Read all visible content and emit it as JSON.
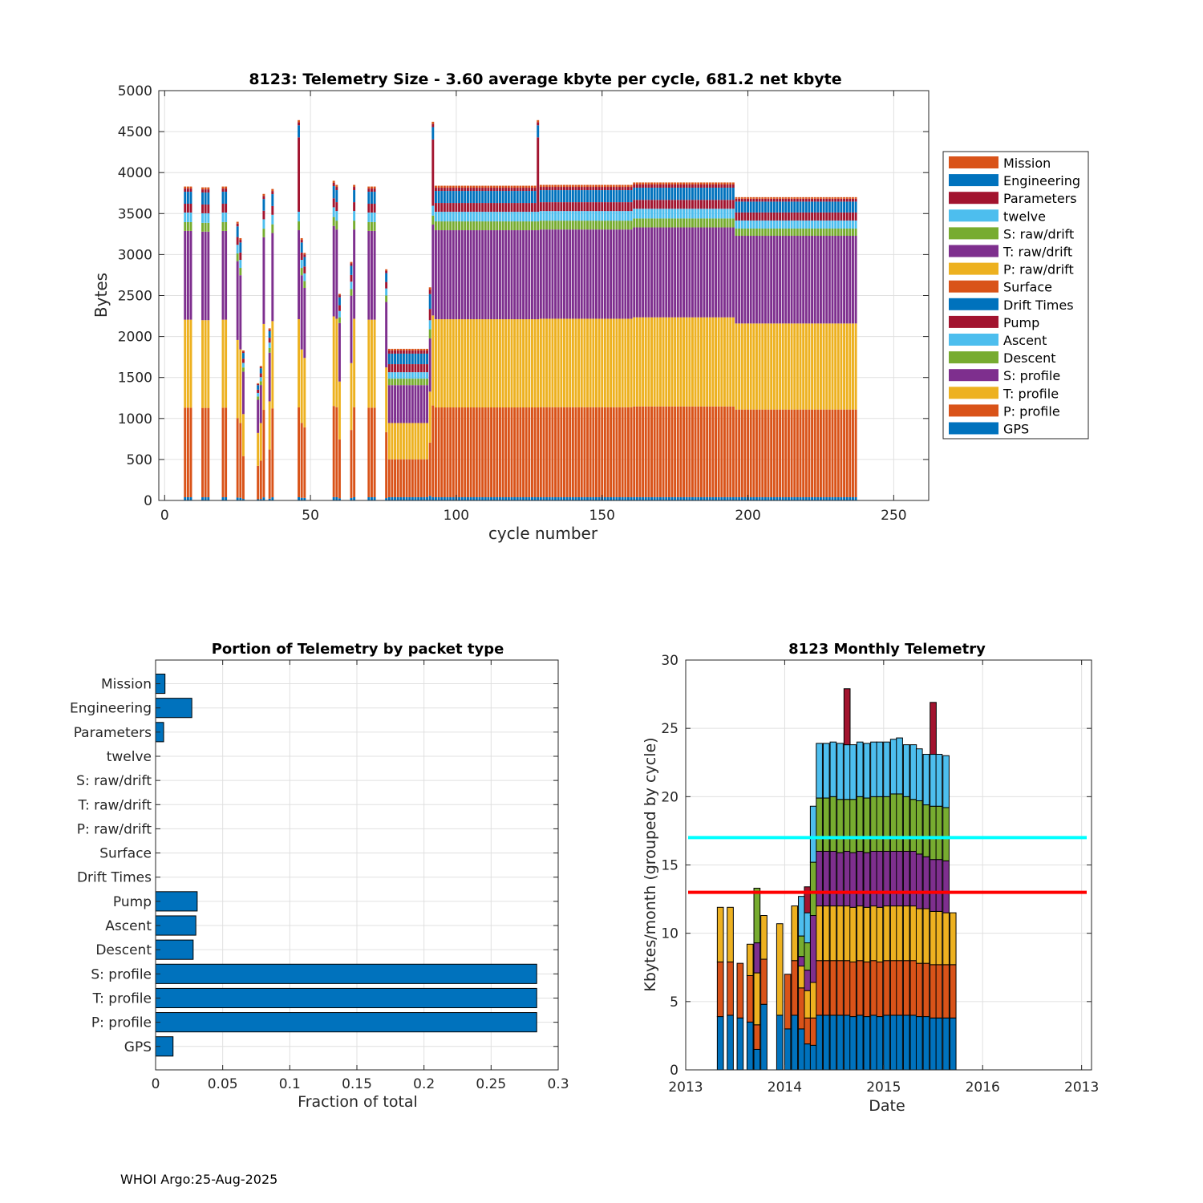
{
  "footer": "WHOI Argo:25-Aug-2025",
  "palette": {
    "Mission": "#D95319",
    "Engineering": "#0072BD",
    "Parameters": "#A2142F",
    "twelve": "#4DBEEE",
    "S: raw/drift": "#77AC30",
    "T: raw/drift": "#7E2F8E",
    "P: raw/drift": "#EDB120",
    "Surface": "#D95319",
    "Drift Times": "#0072BD",
    "Pump": "#A2142F",
    "Ascent": "#4DBEEE",
    "Descent": "#77AC30",
    "S: profile": "#7E2F8E",
    "T: profile": "#EDB120",
    "P: profile": "#D95319",
    "GPS": "#0072BD"
  },
  "chart_data": [
    {
      "id": "cycle-telemetry",
      "type": "bar",
      "stacked": true,
      "title": "8123: Telemetry Size - 3.60 average kbyte per cycle,  681.2 net kbyte",
      "xlabel": "cycle number",
      "ylabel": "Bytes",
      "xlim": [
        -2,
        262
      ],
      "ylim": [
        0,
        5000
      ],
      "xticks": [
        0,
        50,
        100,
        150,
        200,
        250
      ],
      "yticks": [
        0,
        500,
        1000,
        1500,
        2000,
        2500,
        3000,
        3500,
        4000,
        4500,
        5000
      ],
      "legend_position": "outside-right",
      "legend": [
        "Mission",
        "Engineering",
        "Parameters",
        "twelve",
        "S: raw/drift",
        "T: raw/drift",
        "P: raw/drift",
        "Surface",
        "Drift Times",
        "Pump",
        "Ascent",
        "Descent",
        "S: profile",
        "T: profile",
        "P: profile",
        "GPS"
      ],
      "stack_order": [
        "GPS",
        "P: profile",
        "T: profile",
        "S: profile",
        "Descent",
        "Ascent",
        "Pump",
        "Engineering",
        "Parameters",
        "Mission"
      ],
      "templates": {
        "full": {
          "GPS": 40,
          "P: profile": 1120,
          "T: profile": 1100,
          "S: profile": 1110,
          "Descent": 110,
          "Ascent": 120,
          "Pump": 110,
          "Engineering": 150,
          "Parameters": 40,
          "Mission": 25
        },
        "mid": {
          "GPS": 40,
          "P: profile": 470,
          "T: profile": 450,
          "S: profile": 470,
          "Descent": 80,
          "Ascent": 80,
          "Pump": 100,
          "Engineering": 130,
          "Parameters": 40,
          "Mission": 20
        },
        "late": {
          "GPS": 40,
          "P: profile": 1090,
          "T: profile": 1070,
          "S: profile": 1090,
          "Descent": 90,
          "Ascent": 100,
          "Pump": 100,
          "Engineering": 135,
          "Parameters": 35,
          "Mission": 20
        }
      },
      "segments": [
        {
          "from": 7,
          "to": 9,
          "total": 3830,
          "tpl": "full"
        },
        {
          "from": 13,
          "to": 15,
          "total": 3820,
          "tpl": "full"
        },
        {
          "from": 20,
          "to": 21,
          "total": 3830,
          "tpl": "full"
        },
        {
          "from": 25,
          "to": 25,
          "total": 3400,
          "tpl": "full"
        },
        {
          "from": 26,
          "to": 26,
          "total": 3200,
          "tpl": "full"
        },
        {
          "from": 27,
          "to": 27,
          "total": 1830,
          "tpl": "full"
        },
        {
          "from": 32,
          "to": 32,
          "total": 1430,
          "tpl": "full"
        },
        {
          "from": 33,
          "to": 33,
          "total": 1640,
          "tpl": "full"
        },
        {
          "from": 34,
          "to": 34,
          "total": 3740,
          "tpl": "full"
        },
        {
          "from": 36,
          "to": 36,
          "total": 2100,
          "tpl": "full"
        },
        {
          "from": 37,
          "to": 37,
          "total": 3800,
          "tpl": "full"
        },
        {
          "from": 46,
          "to": 46,
          "total": 4640,
          "tpl": "full",
          "pumpExtra": 800
        },
        {
          "from": 47,
          "to": 47,
          "total": 3200,
          "tpl": "full"
        },
        {
          "from": 48,
          "to": 48,
          "total": 3020,
          "tpl": "full"
        },
        {
          "from": 58,
          "to": 58,
          "total": 3900,
          "tpl": "full"
        },
        {
          "from": 59,
          "to": 59,
          "total": 3850,
          "tpl": "full"
        },
        {
          "from": 60,
          "to": 60,
          "total": 2520,
          "tpl": "full"
        },
        {
          "from": 64,
          "to": 64,
          "total": 2910,
          "tpl": "full"
        },
        {
          "from": 65,
          "to": 65,
          "total": 3850,
          "tpl": "full"
        },
        {
          "from": 70,
          "to": 72,
          "total": 3830,
          "tpl": "full"
        },
        {
          "from": 76,
          "to": 76,
          "total": 2820,
          "tpl": "full"
        },
        {
          "from": 77,
          "to": 90,
          "total": 1850,
          "tpl": "mid"
        },
        {
          "from": 91,
          "to": 91,
          "total": 2600,
          "tpl": "mid"
        },
        {
          "from": 92,
          "to": 92,
          "total": 4620,
          "tpl": "full",
          "pumpExtra": 700
        },
        {
          "from": 93,
          "to": 127,
          "total": 3840,
          "tpl": "full"
        },
        {
          "from": 128,
          "to": 128,
          "total": 4640,
          "tpl": "full",
          "pumpExtra": 800
        },
        {
          "from": 129,
          "to": 160,
          "total": 3850,
          "tpl": "full"
        },
        {
          "from": 161,
          "to": 195,
          "total": 3880,
          "tpl": "full"
        },
        {
          "from": 196,
          "to": 237,
          "total": 3700,
          "tpl": "late"
        }
      ]
    },
    {
      "id": "packet-portion",
      "type": "bar",
      "orientation": "horizontal",
      "title": "Portion of Telemetry by packet type",
      "xlabel": "Fraction of total",
      "ylabel": "",
      "xlim": [
        0,
        0.3
      ],
      "xticks": [
        0,
        0.05,
        0.1,
        0.15,
        0.2,
        0.25,
        0.3
      ],
      "xticklabels": [
        "0",
        "0.05",
        "0.1",
        "0.15",
        "0.2",
        "0.25",
        "0.3"
      ],
      "categories": [
        "Mission",
        "Engineering",
        "Parameters",
        "twelve",
        "S: raw/drift",
        "T: raw/drift",
        "P: raw/drift",
        "Surface",
        "Drift Times",
        "Pump",
        "Ascent",
        "Descent",
        "S: profile",
        "T: profile",
        "P: profile",
        "GPS"
      ],
      "values": [
        0.007,
        0.027,
        0.006,
        0,
        0,
        0,
        0,
        0,
        0,
        0.031,
        0.03,
        0.028,
        0.284,
        0.284,
        0.284,
        0.013
      ],
      "color": "#0072BD"
    },
    {
      "id": "monthly-telemetry",
      "type": "bar",
      "stacked": true,
      "title": "8123 Monthly Telemetry",
      "xlabel": "Date",
      "ylabel": "Kbytes/month (grouped by cycle)",
      "xlim": [
        0,
        41
      ],
      "ylim": [
        0,
        30
      ],
      "yticks": [
        0,
        5,
        10,
        15,
        20,
        25,
        30
      ],
      "xtick_positions": [
        0,
        10,
        20,
        30,
        40
      ],
      "xticklabels": [
        "2013",
        "2014",
        "2015",
        "2016",
        "2013"
      ],
      "hlines": [
        {
          "value": 17.0,
          "color": "#00FFFF"
        },
        {
          "value": 13.0,
          "color": "#FF0000"
        }
      ],
      "stack_colors": [
        "#0072BD",
        "#D95319",
        "#EDB120",
        "#7E2F8E",
        "#77AC30",
        "#4DBEEE",
        "#A2142F"
      ],
      "bars": [
        {
          "x": 3.5,
          "stack": [
            3.9,
            4.0,
            4.0,
            0,
            0,
            0,
            0
          ]
        },
        {
          "x": 4.5,
          "stack": [
            4.0,
            3.9,
            4.0,
            0,
            0,
            0,
            0
          ]
        },
        {
          "x": 5.5,
          "stack": [
            3.8,
            4.0,
            0,
            0,
            0,
            0,
            0
          ]
        },
        {
          "x": 6.5,
          "stack": [
            3.5,
            3.4,
            2.3,
            0,
            0,
            0,
            0
          ]
        },
        {
          "x": 7.2,
          "stack": [
            1.5,
            1.8,
            3.8,
            2.2,
            4.0,
            0,
            0
          ]
        },
        {
          "x": 7.9,
          "stack": [
            4.8,
            3.3,
            3.2,
            0,
            0,
            0,
            0
          ]
        },
        {
          "x": 9.5,
          "stack": [
            4.0,
            0,
            6.7,
            0,
            0,
            0,
            0
          ]
        },
        {
          "x": 10.3,
          "stack": [
            3.0,
            4.0,
            0,
            0,
            0,
            0,
            0
          ]
        },
        {
          "x": 11.0,
          "stack": [
            4.0,
            4.0,
            4.0,
            0,
            0,
            0,
            0
          ]
        },
        {
          "x": 11.7,
          "stack": [
            3.0,
            3.0,
            1.6,
            0.7,
            1.5,
            2.9,
            0
          ]
        },
        {
          "x": 12.3,
          "stack": [
            1.9,
            1.9,
            2.0,
            1.5,
            2.0,
            2.2,
            1.9
          ]
        },
        {
          "x": 12.9,
          "stack": [
            1.8,
            2.0,
            2.6,
            4.9,
            3.9,
            4.1,
            0
          ]
        },
        {
          "x": 13.5,
          "stack": [
            4.0,
            4.0,
            4.0,
            4.0,
            3.9,
            4.0,
            0
          ]
        },
        {
          "x": 14.2,
          "stack": [
            4.0,
            4.0,
            4.0,
            4.0,
            3.9,
            4.0,
            0
          ]
        },
        {
          "x": 14.9,
          "stack": [
            4.0,
            4.0,
            4.0,
            4.0,
            4.0,
            4.0,
            0
          ]
        },
        {
          "x": 15.6,
          "stack": [
            4.0,
            4.0,
            4.0,
            3.9,
            3.9,
            4.1,
            0
          ]
        },
        {
          "x": 16.3,
          "stack": [
            4.0,
            4.0,
            4.0,
            4.0,
            3.8,
            4.0,
            4.1
          ]
        },
        {
          "x": 16.9,
          "stack": [
            3.9,
            4.0,
            4.0,
            4.0,
            3.9,
            4.0,
            0
          ]
        },
        {
          "x": 17.6,
          "stack": [
            4.0,
            4.0,
            4.0,
            4.0,
            4.0,
            4.0,
            0
          ]
        },
        {
          "x": 18.3,
          "stack": [
            3.9,
            4.0,
            4.0,
            4.0,
            4.0,
            4.0,
            0
          ]
        },
        {
          "x": 19.0,
          "stack": [
            4.0,
            4.0,
            4.0,
            4.0,
            4.0,
            4.0,
            0
          ]
        },
        {
          "x": 19.6,
          "stack": [
            3.9,
            4.0,
            4.0,
            4.1,
            4.0,
            4.0,
            0
          ]
        },
        {
          "x": 20.3,
          "stack": [
            4.0,
            4.0,
            4.0,
            4.0,
            4.0,
            4.0,
            0
          ]
        },
        {
          "x": 21.0,
          "stack": [
            4.0,
            4.0,
            4.0,
            4.0,
            4.2,
            4.0,
            0
          ]
        },
        {
          "x": 21.6,
          "stack": [
            4.0,
            4.0,
            4.0,
            4.0,
            4.2,
            4.1,
            0
          ]
        },
        {
          "x": 22.3,
          "stack": [
            4.0,
            4.0,
            4.0,
            4.0,
            4.0,
            3.8,
            0
          ]
        },
        {
          "x": 23.0,
          "stack": [
            4.0,
            4.0,
            4.0,
            4.0,
            3.8,
            4.0,
            0
          ]
        },
        {
          "x": 23.6,
          "stack": [
            3.9,
            3.9,
            4.0,
            4.0,
            3.9,
            3.8,
            0
          ]
        },
        {
          "x": 24.3,
          "stack": [
            3.9,
            3.9,
            4.0,
            3.8,
            3.8,
            3.7,
            0
          ]
        },
        {
          "x": 25.0,
          "stack": [
            3.8,
            3.9,
            3.9,
            3.8,
            3.9,
            3.8,
            3.8
          ]
        },
        {
          "x": 25.6,
          "stack": [
            3.8,
            3.9,
            3.9,
            3.8,
            3.9,
            3.8,
            0
          ]
        },
        {
          "x": 26.3,
          "stack": [
            3.8,
            3.9,
            3.8,
            3.8,
            3.9,
            3.8,
            0
          ]
        },
        {
          "x": 27.0,
          "stack": [
            3.8,
            3.9,
            3.8,
            0,
            0,
            0,
            0
          ]
        }
      ]
    }
  ]
}
